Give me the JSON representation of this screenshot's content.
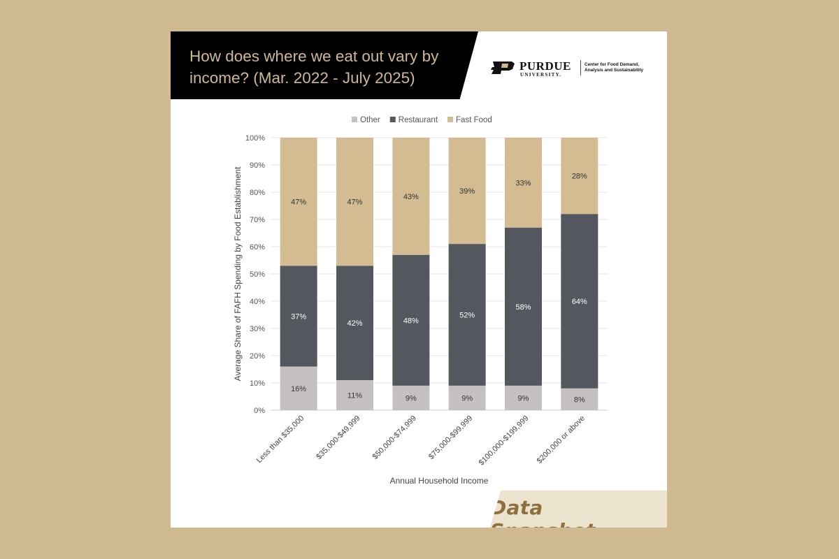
{
  "header": {
    "title_line1": "How does where we eat out vary by",
    "title_line2": "income? (Mar. 2022 - July 2025)"
  },
  "logo": {
    "name": "PURDUE",
    "subname": "UNIVERSITY.",
    "center_line1": "Center for Food Demand,",
    "center_line2": "Analysis and Sustainability"
  },
  "footer": {
    "badge": "Data Snapshot"
  },
  "colors": {
    "background": "#cfb991",
    "title_bar": "#000000",
    "title_text": "#cfb991",
    "other": "#c5c1c2",
    "restaurant": "#54575d",
    "fast_food": "#d3bc91"
  },
  "chart_data": {
    "type": "bar",
    "stacked": true,
    "title": "",
    "xlabel": "Annual Household Income",
    "ylabel": "Average Share of FAFH Spending by Food Establishment",
    "ylim": [
      0,
      100
    ],
    "yticks": [
      "0%",
      "10%",
      "20%",
      "30%",
      "40%",
      "50%",
      "60%",
      "70%",
      "80%",
      "90%",
      "100%"
    ],
    "legend_position": "top",
    "grid": true,
    "categories": [
      "Less than $35,000",
      "$35,000-$49,999",
      "$50,000-$74,999",
      "$75,000-$99,999",
      "$100,000-$199,999",
      "$200,000 or above"
    ],
    "series": [
      {
        "name": "Other",
        "color": "#c5c1c2",
        "label_color": "#333333",
        "values": [
          16,
          11,
          9,
          9,
          9,
          8
        ],
        "labels": [
          "16%",
          "11%",
          "9%",
          "9%",
          "9%",
          "8%"
        ]
      },
      {
        "name": "Restaurant",
        "color": "#54575d",
        "label_color": "#ffffff",
        "values": [
          37,
          42,
          48,
          52,
          58,
          64
        ],
        "labels": [
          "37%",
          "42%",
          "48%",
          "52%",
          "58%",
          "64%"
        ]
      },
      {
        "name": "Fast Food",
        "color": "#d3bc91",
        "label_color": "#333333",
        "values": [
          47,
          47,
          43,
          39,
          33,
          28
        ],
        "labels": [
          "47%",
          "47%",
          "43%",
          "39%",
          "33%",
          "28%"
        ]
      }
    ]
  }
}
